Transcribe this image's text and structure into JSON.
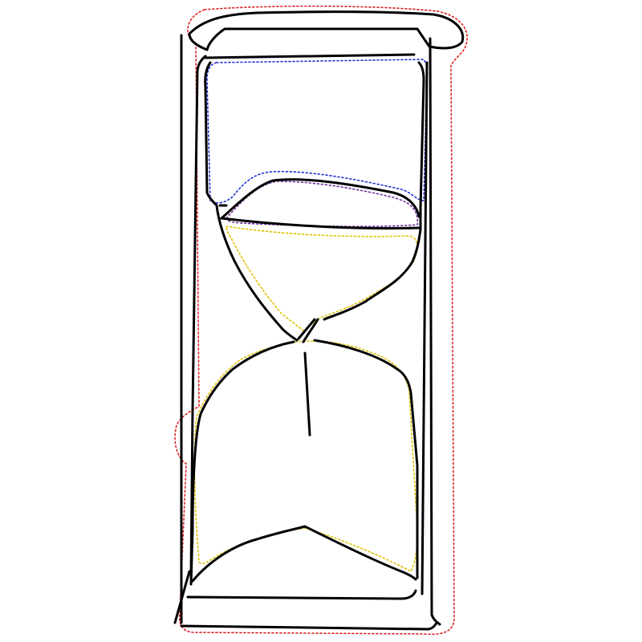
{
  "sketch": {
    "subject": "hourglass",
    "colors": {
      "ink": "#000000",
      "frame_outline": "#e02020",
      "upper_glass_outline": "#2030d0",
      "upper_sand_outline": "#7030a0",
      "sand_outline": "#e0c000",
      "background": "#ffffff"
    }
  }
}
